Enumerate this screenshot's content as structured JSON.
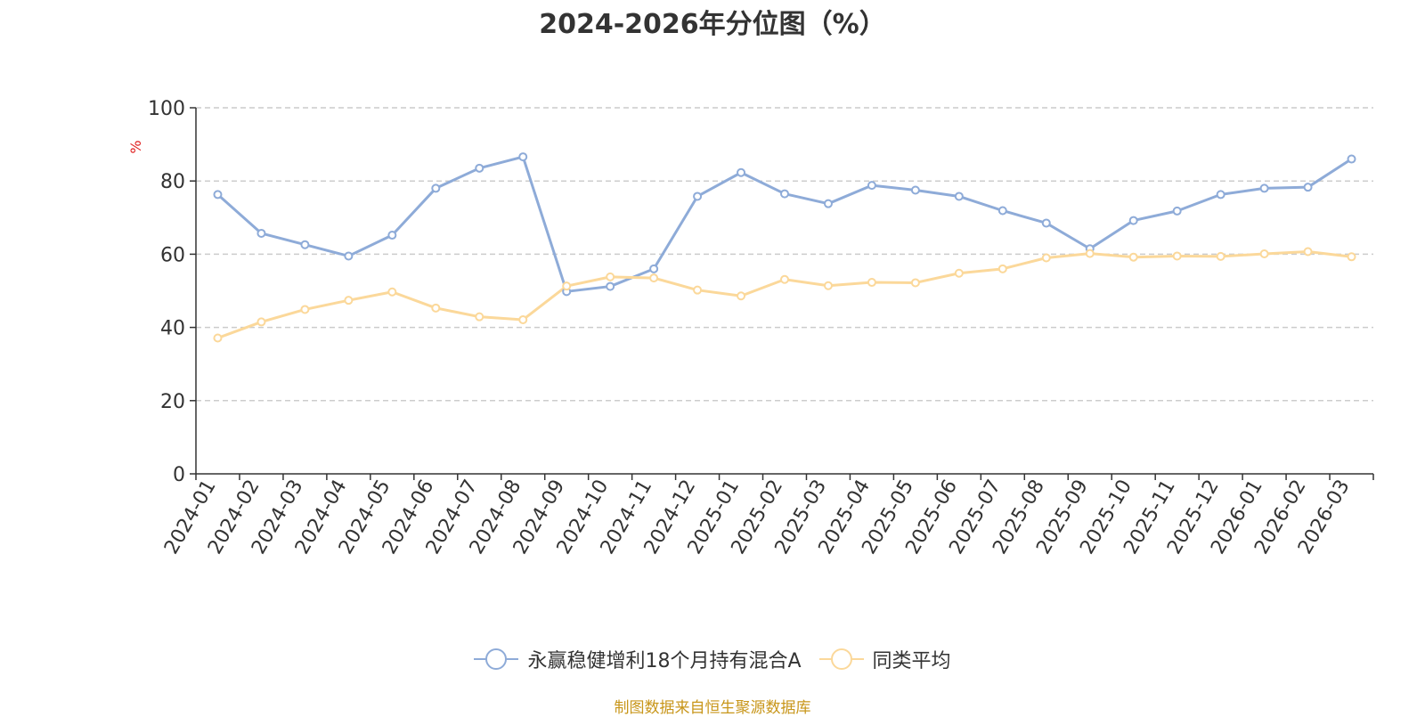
{
  "chart_data": {
    "type": "line",
    "title": "2024-2026年分位图（%）",
    "ylabel": "%",
    "xlabel": "",
    "ylim": [
      0,
      100
    ],
    "yticks": [
      0,
      20,
      40,
      60,
      80,
      100
    ],
    "grid": true,
    "legend_position": "bottom",
    "categories": [
      "2024-01",
      "2024-02",
      "2024-03",
      "2024-04",
      "2024-05",
      "2024-06",
      "2024-07",
      "2024-08",
      "2024-09",
      "2024-10",
      "2024-11",
      "2024-12",
      "2025-01",
      "2025-02",
      "2025-03",
      "2025-04",
      "2025-05",
      "2025-06",
      "2025-07",
      "2025-08",
      "2025-09",
      "2025-10",
      "2025-11",
      "2025-12",
      "2026-01",
      "2026-02",
      "2026-03"
    ],
    "series": [
      {
        "name": "永赢稳健增利18个月持有混合A",
        "color": "#8eabd8",
        "values": [
          76.3,
          65.7,
          62.6,
          59.5,
          65.2,
          78.0,
          83.5,
          86.6,
          49.8,
          51.2,
          56.0,
          75.8,
          82.3,
          76.5,
          73.8,
          78.8,
          77.5,
          75.8,
          71.9,
          68.5,
          61.5,
          69.2,
          71.8,
          76.3,
          78.0,
          78.3,
          86.0
        ]
      },
      {
        "name": "同类平均",
        "color": "#fbd89a",
        "values": [
          37.1,
          41.5,
          44.9,
          47.4,
          49.7,
          45.3,
          42.9,
          42.1,
          51.3,
          53.8,
          53.5,
          50.2,
          48.6,
          53.1,
          51.4,
          52.3,
          52.2,
          54.8,
          56.0,
          59.0,
          60.2,
          59.2,
          59.5,
          59.4,
          60.1,
          60.7,
          59.3
        ]
      }
    ]
  },
  "source": "制图数据来自恒生聚源数据库"
}
